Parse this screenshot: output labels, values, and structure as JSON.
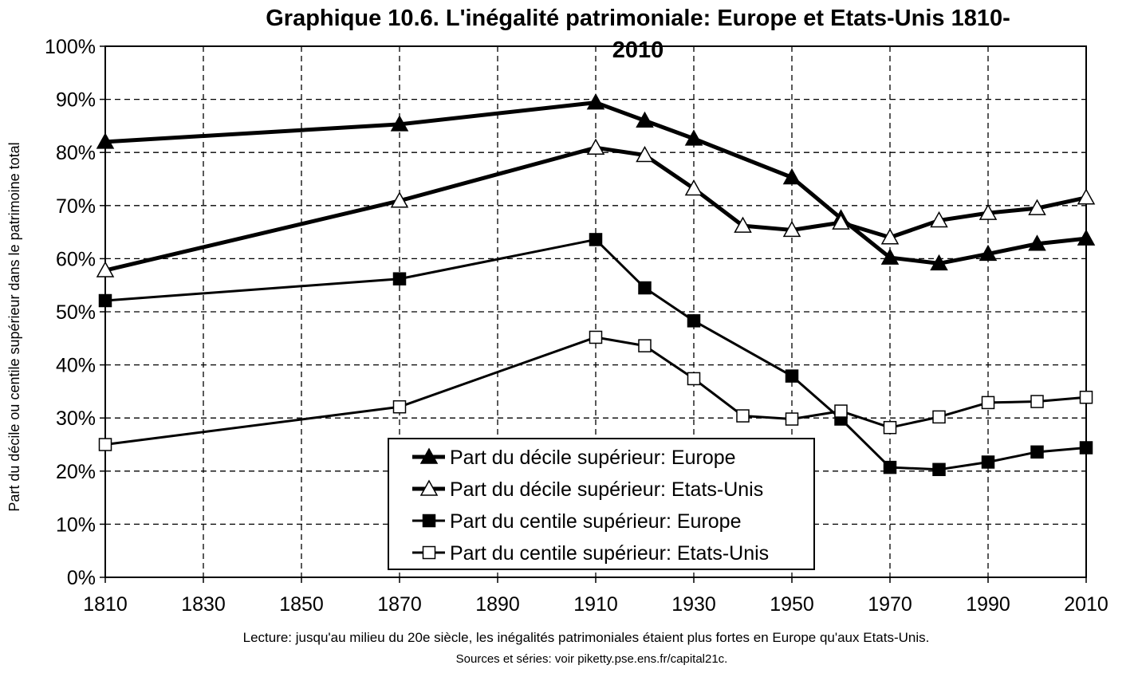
{
  "chart_data": {
    "type": "line",
    "title_line1": "Graphique 10.6. L'inégalité patrimoniale: Europe et Etats-Unis 1810-",
    "title_line2": "2010",
    "xlabel": "",
    "ylabel": "Part du décile ou centile supérieur dans le patrimoine total",
    "xlim": [
      1810,
      2010
    ],
    "ylim": [
      0,
      100
    ],
    "x_ticks": [
      "1810",
      "1830",
      "1850",
      "1870",
      "1890",
      "1910",
      "1930",
      "1950",
      "1970",
      "1990",
      "2010"
    ],
    "y_ticks": [
      "0%",
      "10%",
      "20%",
      "30%",
      "40%",
      "50%",
      "60%",
      "70%",
      "80%",
      "90%",
      "100%"
    ],
    "grid": true,
    "legend_position": "bottom-center",
    "series": [
      {
        "name": "Part du décile supérieur: Europe",
        "marker": "triangle-filled",
        "line": "thick",
        "x": [
          1810,
          1870,
          1910,
          1920,
          1930,
          1950,
          1960,
          1970,
          1980,
          1990,
          2000,
          2010
        ],
        "values": [
          82,
          85.3,
          89.4,
          86,
          82.6,
          75.3,
          67.6,
          60.2,
          59.1,
          60.9,
          62.8,
          63.8
        ]
      },
      {
        "name": "Part du décile supérieur: Etats-Unis",
        "marker": "triangle-open",
        "line": "thick",
        "x": [
          1810,
          1870,
          1910,
          1920,
          1930,
          1940,
          1950,
          1960,
          1970,
          1980,
          1990,
          2000,
          2010
        ],
        "values": [
          57.8,
          70.9,
          80.9,
          79.5,
          73.2,
          66.2,
          65.4,
          66.8,
          64,
          67.2,
          68.6,
          69.5,
          71.5
        ]
      },
      {
        "name": "Part du centile supérieur: Europe",
        "marker": "square-filled",
        "line": "thin",
        "x": [
          1810,
          1870,
          1910,
          1920,
          1930,
          1950,
          1960,
          1970,
          1980,
          1990,
          2000,
          2010
        ],
        "values": [
          52.1,
          56.2,
          63.6,
          54.5,
          48.3,
          37.9,
          29.8,
          20.7,
          20.3,
          21.7,
          23.6,
          24.4
        ]
      },
      {
        "name": "Part du centile supérieur: Etats-Unis",
        "marker": "square-open",
        "line": "thin",
        "x": [
          1810,
          1870,
          1910,
          1920,
          1930,
          1940,
          1950,
          1960,
          1970,
          1980,
          1990,
          2000,
          2010
        ],
        "values": [
          25,
          32.1,
          45.2,
          43.6,
          37.4,
          30.4,
          29.8,
          31.3,
          28.2,
          30.2,
          32.9,
          33.1,
          33.9
        ]
      }
    ]
  },
  "footer": {
    "note": "Lecture: jusqu'au milieu du 20e siècle, les inégalités patrimoniales étaient plus fortes en Europe qu'aux Etats-Unis.",
    "source": "Sources et séries: voir piketty.pse.ens.fr/capital21c."
  }
}
